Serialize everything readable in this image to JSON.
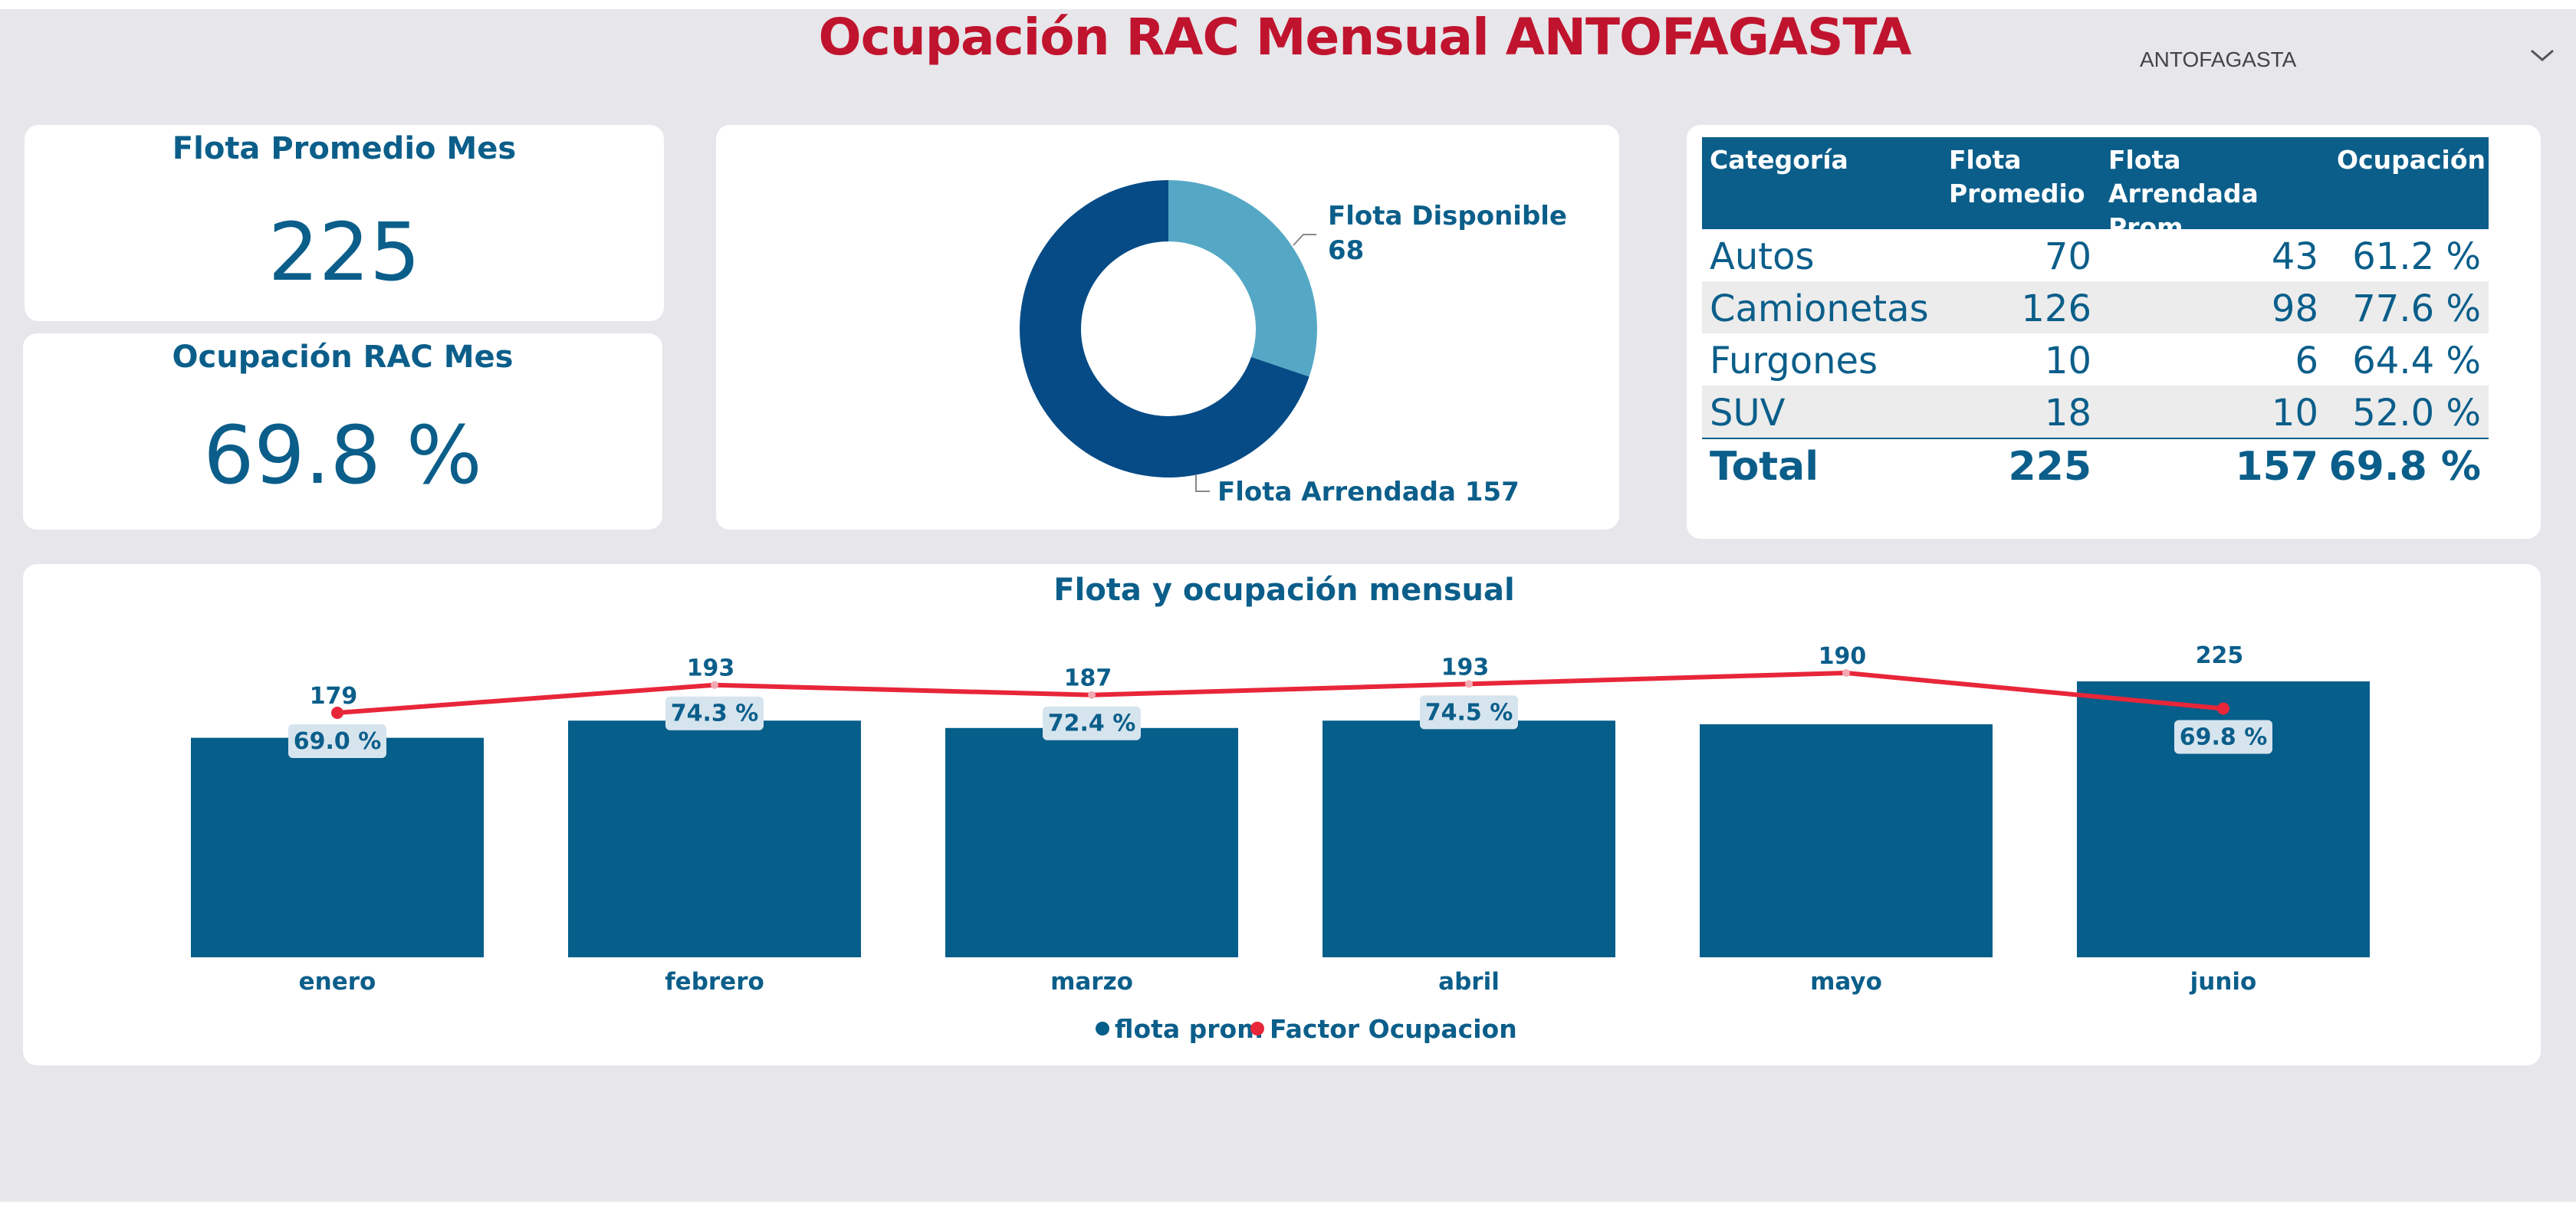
{
  "header": {
    "title": "Ocupación RAC Mensual ANTOFAGASTA",
    "slicer_value": "ANTOFAGASTA",
    "slicer_icon": "chevron-down-icon"
  },
  "kpis": {
    "flota": {
      "title": "Flota Promedio Mes",
      "value": "225"
    },
    "ocupacion": {
      "title": "Ocupación RAC Mes",
      "value": "69.8 %"
    }
  },
  "donut": {
    "segments": [
      {
        "name": "Flota Disponible",
        "value": 68,
        "color": "#55a8c5"
      },
      {
        "name": "Flota Arrendada",
        "value": 157,
        "color": "#064b86"
      }
    ],
    "label_disponible_name": "Flota Disponible",
    "label_disponible_value": "68",
    "label_arrendada": "Flota Arrendada 157"
  },
  "table": {
    "headers": [
      "Categoría",
      "Flota Promedio",
      "Flota Arrendada Prom",
      "Ocupación"
    ],
    "rows": [
      {
        "categoria": "Autos",
        "flota": "70",
        "arrendada": "43",
        "ocupacion": "61.2 %"
      },
      {
        "categoria": "Camionetas",
        "flota": "126",
        "arrendada": "98",
        "ocupacion": "77.6 %"
      },
      {
        "categoria": "Furgones",
        "flota": "10",
        "arrendada": "6",
        "ocupacion": "64.4 %"
      },
      {
        "categoria": "SUV",
        "flota": "18",
        "arrendada": "10",
        "ocupacion": "52.0 %"
      }
    ],
    "total": {
      "categoria": "Total",
      "flota": "225",
      "arrendada": "157",
      "ocupacion": "69.8 %"
    }
  },
  "chart_data": {
    "type": "bar",
    "title": "Flota y ocupación mensual",
    "categories": [
      "enero",
      "febrero",
      "marzo",
      "abril",
      "mayo",
      "junio"
    ],
    "series": [
      {
        "name": "flota prom",
        "type": "bar",
        "color": "#065e8a",
        "values": [
          179,
          193,
          187,
          193,
          190,
          225
        ],
        "labels": [
          "179",
          "193",
          "187",
          "193",
          "190",
          "225"
        ]
      },
      {
        "name": "Factor Ocupacion",
        "type": "line",
        "color": "#e8263a",
        "values": [
          69.0,
          74.3,
          72.4,
          74.5,
          76.6,
          69.8
        ],
        "labels": [
          "69.0 %",
          "74.3 %",
          "72.4 %",
          "74.5 %",
          "",
          "69.8 %"
        ]
      }
    ],
    "legend": "bottom-center"
  }
}
